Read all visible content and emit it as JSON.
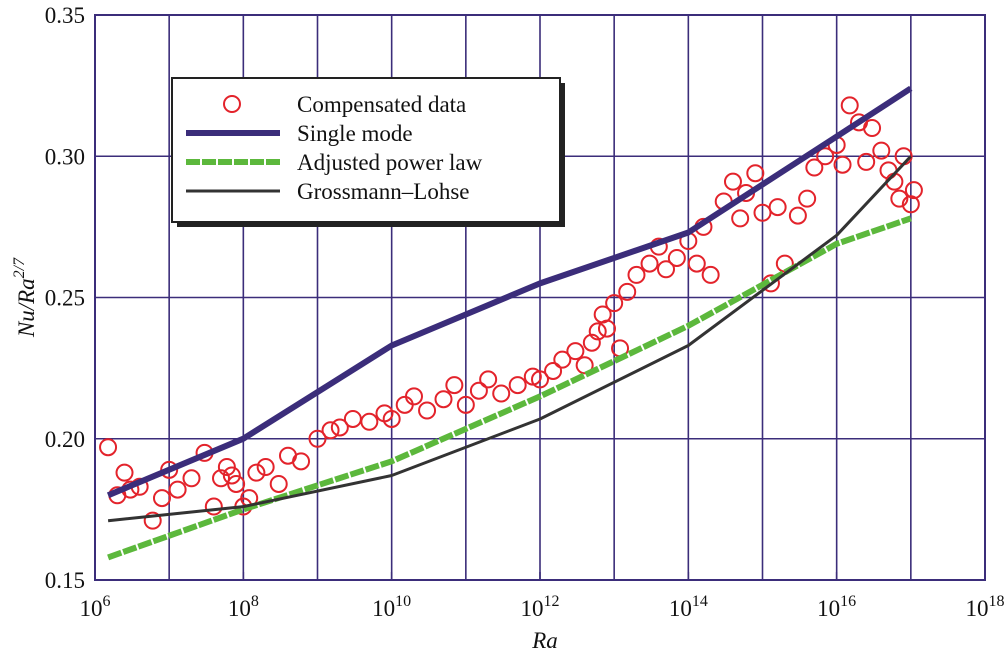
{
  "chart_data": {
    "type": "scatter",
    "xlabel": "Ra",
    "ylabel": "Nu/Ra^2/7",
    "xscale": "log",
    "grid": true,
    "legend": "upper left",
    "xlim": [
      1000000.0,
      1e+18
    ],
    "ylim": [
      0.15,
      0.35
    ],
    "xticks": [
      {
        "value": 1000000.0,
        "label": "10^6"
      },
      {
        "value": 100000000.0,
        "label": "10^8"
      },
      {
        "value": 10000000000.0,
        "label": "10^10"
      },
      {
        "value": 1000000000000.0,
        "label": "10^12"
      },
      {
        "value": 100000000000000.0,
        "label": "10^14"
      },
      {
        "value": 1e+16,
        "label": "10^16"
      },
      {
        "value": 1e+18,
        "label": "10^18"
      }
    ],
    "xgrid": [
      1000000.0,
      10000000.0,
      100000000.0,
      1000000000.0,
      10000000000.0,
      100000000000.0,
      1000000000000.0,
      10000000000000.0,
      100000000000000.0,
      1000000000000000.0,
      1e+16,
      1e+17,
      1e+18
    ],
    "yticks": [
      {
        "value": 0.15,
        "label": "0.15"
      },
      {
        "value": 0.2,
        "label": "0.20"
      },
      {
        "value": 0.25,
        "label": "0.25"
      },
      {
        "value": 0.3,
        "label": "0.30"
      },
      {
        "value": 0.35,
        "label": "0.35"
      }
    ],
    "series": [
      {
        "name": "Compensated data",
        "type": "scatter",
        "color": "#e3232b",
        "x": [
          1500000.0,
          2000000.0,
          2500000.0,
          3000000.0,
          4000000.0,
          6000000.0,
          8000000.0,
          10000000.0,
          13000000.0,
          20000000.0,
          30000000.0,
          40000000.0,
          50000000.0,
          60000000.0,
          70000000.0,
          80000000.0,
          100000000.0,
          120000000.0,
          150000000.0,
          200000000.0,
          300000000.0,
          400000000.0,
          600000000.0,
          1000000000.0,
          1500000000.0,
          2000000000.0,
          3000000000.0,
          5000000000.0,
          8000000000.0,
          10000000000.0,
          15000000000.0,
          20000000000.0,
          30000000000.0,
          50000000000.0,
          70000000000.0,
          100000000000.0,
          150000000000.0,
          200000000000.0,
          300000000000.0,
          500000000000.0,
          800000000000.0,
          1000000000000.0,
          1500000000000.0,
          2000000000000.0,
          3000000000000.0,
          4000000000000.0,
          5000000000000.0,
          6000000000000.0,
          7000000000000.0,
          8000000000000.0,
          10000000000000.0,
          12000000000000.0,
          15000000000000.0,
          20000000000000.0,
          30000000000000.0,
          40000000000000.0,
          50000000000000.0,
          70000000000000.0,
          100000000000000.0,
          130000000000000.0,
          160000000000000.0,
          200000000000000.0,
          300000000000000.0,
          400000000000000.0,
          500000000000000.0,
          600000000000000.0,
          800000000000000.0,
          1000000000000000.0,
          1300000000000000.0,
          1600000000000000.0,
          2000000000000000.0,
          3000000000000000.0,
          4000000000000000.0,
          5000000000000000.0,
          7000000000000000.0,
          1e+16,
          1.2e+16,
          1.5e+16,
          2e+16,
          2.5e+16,
          3e+16,
          4e+16,
          5e+16,
          6e+16,
          7e+16,
          8e+16,
          1e+17,
          1.1e+17
        ],
        "values": [
          0.197,
          0.18,
          0.188,
          0.182,
          0.183,
          0.171,
          0.179,
          0.189,
          0.182,
          0.186,
          0.195,
          0.176,
          0.186,
          0.19,
          0.187,
          0.184,
          0.176,
          0.179,
          0.188,
          0.19,
          0.184,
          0.194,
          0.192,
          0.2,
          0.203,
          0.204,
          0.207,
          0.206,
          0.209,
          0.207,
          0.212,
          0.215,
          0.21,
          0.214,
          0.219,
          0.212,
          0.217,
          0.221,
          0.216,
          0.219,
          0.222,
          0.221,
          0.224,
          0.228,
          0.231,
          0.226,
          0.234,
          0.238,
          0.244,
          0.239,
          0.248,
          0.232,
          0.252,
          0.258,
          0.262,
          0.268,
          0.26,
          0.264,
          0.27,
          0.262,
          0.275,
          0.258,
          0.284,
          0.291,
          0.278,
          0.287,
          0.294,
          0.28,
          0.255,
          0.282,
          0.262,
          0.279,
          0.285,
          0.296,
          0.3,
          0.304,
          0.297,
          0.318,
          0.312,
          0.298,
          0.31,
          0.302,
          0.295,
          0.291,
          0.285,
          0.3,
          0.283,
          0.288
        ]
      },
      {
        "name": "Single mode",
        "type": "line",
        "color": "#3b2d7a",
        "x": [
          1500000.0,
          100000000.0,
          10000000000.0,
          1000000000000.0,
          100000000000000.0,
          1e+16,
          1e+17
        ],
        "values": [
          0.18,
          0.2,
          0.233,
          0.255,
          0.273,
          0.307,
          0.324
        ]
      },
      {
        "name": "Adjusted power law",
        "type": "line",
        "color": "#5cb83c",
        "x": [
          1500000.0,
          100000000.0,
          10000000000.0,
          1000000000000.0,
          100000000000000.0,
          1e+16,
          1e+17
        ],
        "values": [
          0.158,
          0.175,
          0.192,
          0.215,
          0.24,
          0.269,
          0.278
        ]
      },
      {
        "name": "Grossmann–Lohse",
        "type": "line",
        "color": "#333333",
        "x": [
          1500000.0,
          100000000.0,
          10000000000.0,
          1000000000000.0,
          100000000000000.0,
          1e+16,
          1e+17
        ],
        "values": [
          0.171,
          0.176,
          0.187,
          0.207,
          0.233,
          0.272,
          0.3
        ]
      }
    ]
  }
}
